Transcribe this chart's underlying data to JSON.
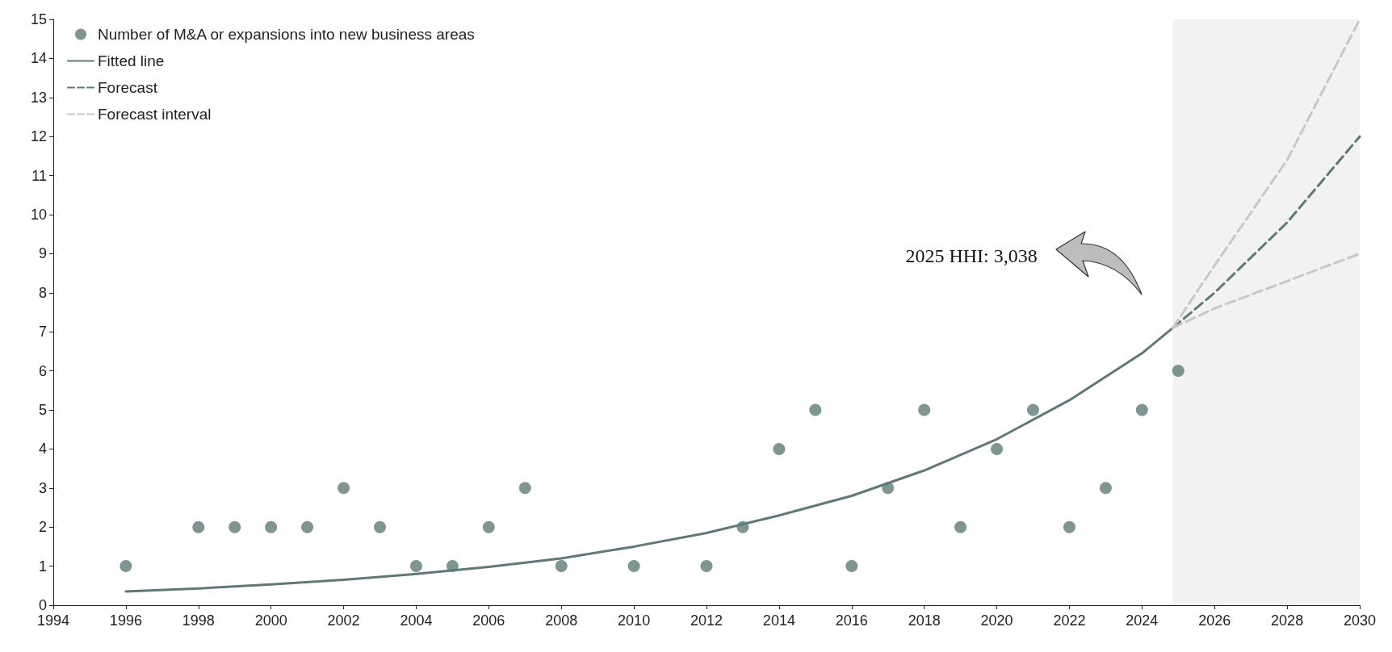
{
  "chart_data": {
    "type": "scatter",
    "series": [
      {
        "name": "Number of M&A or expansions into new business areas",
        "color": "#5f7a76",
        "marker": "circle",
        "x": [
          1996,
          1998,
          1999,
          2000,
          2001,
          2002,
          2003,
          2004,
          2005,
          2006,
          2007,
          2008,
          2010,
          2012,
          2013,
          2014,
          2015,
          2016,
          2017,
          2018,
          2019,
          2020,
          2021,
          2022,
          2023,
          2024,
          2025
        ],
        "values": [
          1,
          2,
          2,
          2,
          2,
          3,
          2,
          1,
          1,
          2,
          3,
          1,
          1,
          1,
          2,
          4,
          5,
          1,
          3,
          5,
          2,
          4,
          5,
          2,
          3,
          5,
          6
        ]
      },
      {
        "name": "Fitted line",
        "type": "line",
        "color": "#5f7a76",
        "line_style": "solid",
        "x": [
          1996,
          1998,
          2000,
          2002,
          2004,
          2006,
          2008,
          2010,
          2012,
          2014,
          2016,
          2018,
          2020,
          2022,
          2024,
          2024.85
        ],
        "values": [
          0.35,
          0.43,
          0.53,
          0.65,
          0.8,
          0.98,
          1.2,
          1.5,
          1.85,
          2.3,
          2.8,
          3.45,
          4.25,
          5.25,
          6.45,
          7.1
        ]
      },
      {
        "name": "Forecast",
        "type": "line",
        "color": "#5f7a76",
        "line_style": "dashed",
        "x": [
          2024.85,
          2026,
          2028,
          2030
        ],
        "values": [
          7.1,
          8.0,
          9.8,
          12
        ]
      },
      {
        "name": "Forecast interval",
        "type": "line",
        "color": "#c8c8c8",
        "line_style": "dashed",
        "x": [
          2024.85,
          2026,
          2028,
          2030
        ],
        "values": [
          7.1,
          8.7,
          11.4,
          15
        ]
      },
      {
        "type": "line",
        "color": "#c8c8c8",
        "line_style": "dashed",
        "x": [
          2024.85,
          2026,
          2028,
          2030
        ],
        "values": [
          7.1,
          7.6,
          8.3,
          9
        ]
      }
    ],
    "xlim": [
      1994,
      2030
    ],
    "xticks": [
      1994,
      1996,
      1998,
      2000,
      2002,
      2004,
      2006,
      2008,
      2010,
      2012,
      2014,
      2016,
      2018,
      2020,
      2022,
      2024,
      2026,
      2028,
      2030
    ],
    "ylim": [
      0,
      15
    ],
    "yticks": [
      0,
      1,
      2,
      3,
      4,
      5,
      6,
      7,
      8,
      9,
      10,
      11,
      12,
      13,
      14,
      15
    ],
    "bands": [
      {
        "axis": "x",
        "from": 2024.85,
        "to": 2030,
        "color": "#f2f2f2"
      }
    ],
    "annotations": [
      "2025 HHI: 3,038"
    ],
    "grid": false,
    "legend": "top left"
  }
}
